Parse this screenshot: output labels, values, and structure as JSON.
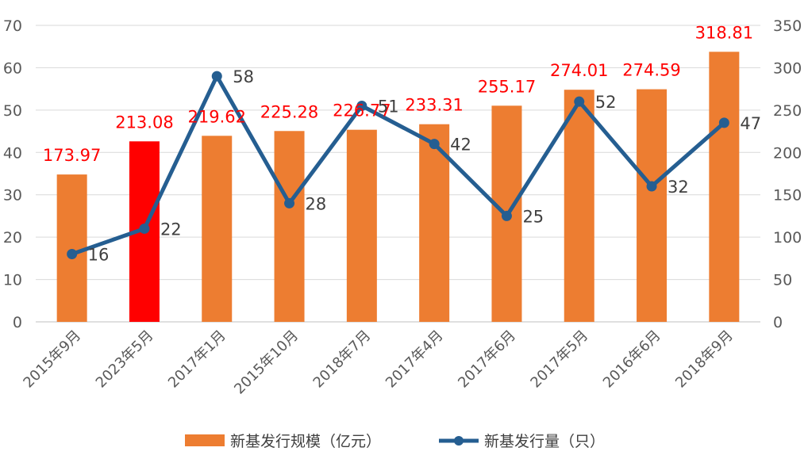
{
  "chart_data": {
    "type": "bar",
    "categories": [
      "2015年9月",
      "2023年5月",
      "2017年1月",
      "2015年10月",
      "2018年7月",
      "2017年4月",
      "2017年6月",
      "2017年5月",
      "2016年6月",
      "2018年9月"
    ],
    "series": [
      {
        "name": "新基发行规模（亿元）",
        "type": "bar",
        "axis": "right",
        "values": [
          173.97,
          213.08,
          219.62,
          225.28,
          226.77,
          233.31,
          255.17,
          274.01,
          274.59,
          318.81
        ],
        "labels": [
          "173.97",
          "213.08",
          "219.62",
          "225.28",
          "226.77",
          "233.31",
          "255.17",
          "274.01",
          "274.59",
          "318.81"
        ],
        "color": "#ed7d31",
        "highlight_index": 1,
        "highlight_color": "#ff0000"
      },
      {
        "name": "新基发行量（只）",
        "type": "line",
        "axis": "left",
        "values": [
          16,
          22,
          58,
          28,
          51,
          42,
          25,
          52,
          32,
          47
        ],
        "labels": [
          "16",
          "22",
          "58",
          "28",
          "51",
          "42",
          "25",
          "52",
          "32",
          "47"
        ],
        "color": "#255e91"
      }
    ],
    "y_left": {
      "min": 0,
      "max": 70,
      "ticks": [
        "0",
        "10",
        "20",
        "30",
        "40",
        "50",
        "60",
        "70"
      ]
    },
    "y_right": {
      "min": 0,
      "max": 350,
      "ticks": [
        "0",
        "50",
        "100",
        "150",
        "200",
        "250",
        "300",
        "350"
      ]
    },
    "grid": true,
    "legend_position": "bottom",
    "title": "",
    "xlabel": "",
    "ylabel": ""
  }
}
